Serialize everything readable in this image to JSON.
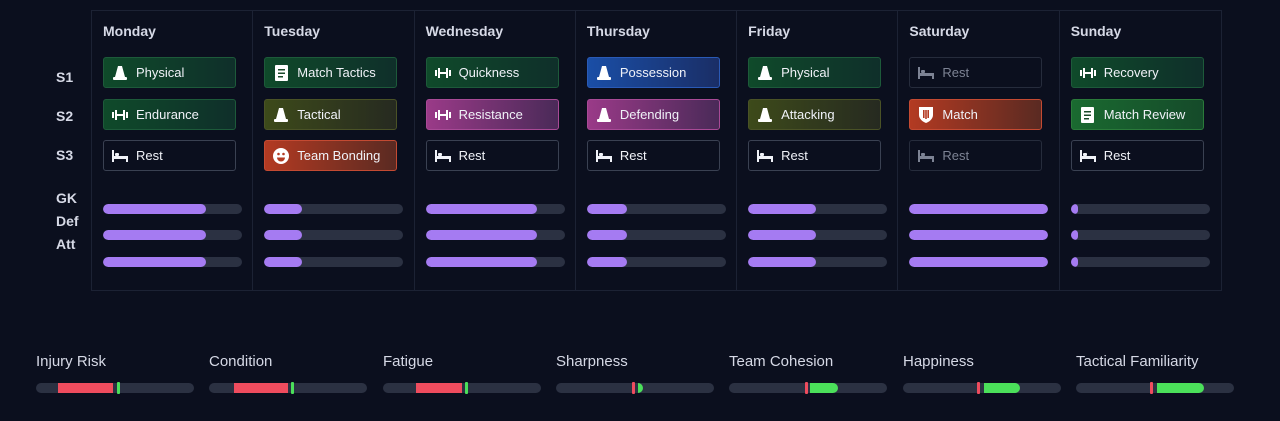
{
  "row_labels": [
    "S1",
    "S2",
    "S3",
    "GK",
    "Def",
    "Att"
  ],
  "days": [
    {
      "name": "Monday",
      "sessions": [
        {
          "label": "Physical",
          "icon": "cone-icon",
          "style": "green"
        },
        {
          "label": "Endurance",
          "icon": "dumbbell-icon",
          "style": "green"
        },
        {
          "label": "Rest",
          "icon": "bed-icon",
          "style": "rest"
        }
      ],
      "levels": [
        0.74,
        0.74,
        0.74
      ]
    },
    {
      "name": "Tuesday",
      "sessions": [
        {
          "label": "Match Tactics",
          "icon": "clipboard-icon",
          "style": "green"
        },
        {
          "label": "Tactical",
          "icon": "cone-icon",
          "style": "olive"
        },
        {
          "label": "Team Bonding",
          "icon": "smiley-icon",
          "style": "red"
        }
      ],
      "levels": [
        0.27,
        0.27,
        0.27
      ]
    },
    {
      "name": "Wednesday",
      "sessions": [
        {
          "label": "Quickness",
          "icon": "dumbbell-icon",
          "style": "green"
        },
        {
          "label": "Resistance",
          "icon": "dumbbell-icon",
          "style": "magenta"
        },
        {
          "label": "Rest",
          "icon": "bed-icon",
          "style": "rest"
        }
      ],
      "levels": [
        0.8,
        0.8,
        0.8
      ]
    },
    {
      "name": "Thursday",
      "sessions": [
        {
          "label": "Possession",
          "icon": "cone-icon",
          "style": "blue"
        },
        {
          "label": "Defending",
          "icon": "cone-icon",
          "style": "magenta"
        },
        {
          "label": "Rest",
          "icon": "bed-icon",
          "style": "rest"
        }
      ],
      "levels": [
        0.29,
        0.29,
        0.29
      ]
    },
    {
      "name": "Friday",
      "sessions": [
        {
          "label": "Physical",
          "icon": "cone-icon",
          "style": "green"
        },
        {
          "label": "Attacking",
          "icon": "cone-icon",
          "style": "olive"
        },
        {
          "label": "Rest",
          "icon": "bed-icon",
          "style": "rest"
        }
      ],
      "levels": [
        0.49,
        0.49,
        0.49
      ]
    },
    {
      "name": "Saturday",
      "sessions": [
        {
          "label": "Rest",
          "icon": "bed-icon",
          "style": "rest dim"
        },
        {
          "label": "Match",
          "icon": "shield-icon",
          "style": "red"
        },
        {
          "label": "Rest",
          "icon": "bed-icon",
          "style": "rest dim"
        }
      ],
      "levels": [
        1.0,
        1.0,
        1.0
      ]
    },
    {
      "name": "Sunday",
      "sessions": [
        {
          "label": "Recovery",
          "icon": "dumbbell-icon",
          "style": "green"
        },
        {
          "label": "Match Review",
          "icon": "clipboard-icon",
          "style": "bright-green"
        },
        {
          "label": "Rest",
          "icon": "bed-icon",
          "style": "rest"
        }
      ],
      "levels": [
        0.04,
        0.04,
        0.04
      ]
    }
  ],
  "stats": [
    {
      "label": "Injury Risk",
      "color": "red",
      "from": 0.14,
      "to": 0.49,
      "marker": 0.51,
      "marker_color": "green"
    },
    {
      "label": "Condition",
      "color": "red",
      "from": 0.16,
      "to": 0.5,
      "marker": 0.52,
      "marker_color": "green"
    },
    {
      "label": "Fatigue",
      "color": "red",
      "from": 0.21,
      "to": 0.5,
      "marker": 0.52,
      "marker_color": "green"
    },
    {
      "label": "Sharpness",
      "color": "green",
      "from": 0.52,
      "to": 0.55,
      "marker": 0.48,
      "marker_color": "red"
    },
    {
      "label": "Team Cohesion",
      "color": "green",
      "from": 0.51,
      "to": 0.69,
      "marker": 0.48,
      "marker_color": "red"
    },
    {
      "label": "Happiness",
      "color": "green",
      "from": 0.51,
      "to": 0.74,
      "marker": 0.47,
      "marker_color": "red"
    },
    {
      "label": "Tactical Familiarity",
      "color": "green",
      "from": 0.51,
      "to": 0.81,
      "marker": 0.47,
      "marker_color": "red"
    }
  ],
  "colors": {
    "red": "#ef4c5e",
    "green": "#4be05a",
    "bar": "#a57bf2",
    "track": "#2b3142"
  }
}
